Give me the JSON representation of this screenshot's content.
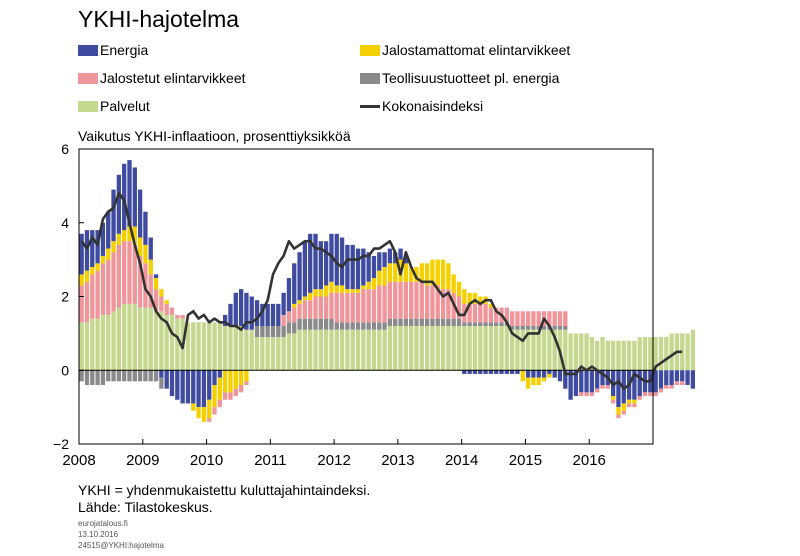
{
  "title": "YKHI-hajotelma",
  "subtitle": "Vaikutus YKHI-inflaatioon,  prosenttiyksikköä",
  "legend": [
    {
      "label": "Energia",
      "color": "#3f4ba1",
      "kind": "bar"
    },
    {
      "label": "Jalostamattomat elintarvikkeet",
      "color": "#f5d000",
      "kind": "bar"
    },
    {
      "label": "Jalostetut elintarvikkeet",
      "color": "#f0969b",
      "kind": "bar"
    },
    {
      "label": "Teollisuustuotteet pl. energia",
      "color": "#8a8a8a",
      "kind": "bar"
    },
    {
      "label": "Palvelut",
      "color": "#c5d88f",
      "kind": "bar"
    },
    {
      "label": "Kokonaisindeksi",
      "color": "#333333",
      "kind": "line"
    }
  ],
  "footnotes": [
    "YKHI = yhdenmukaistettu  kuluttajahintaindeksi.",
    "Lähde: Tilastokeskus."
  ],
  "credits": [
    "eurojatalous.fi",
    "13.10.2016",
    "24515@YKHI:hajotelma"
  ],
  "chart_data": {
    "type": "bar",
    "stacked": true,
    "x_start": "2008-01",
    "frequency": "monthly",
    "xlim": [
      2008,
      2017
    ],
    "x_ticks": [
      "2008",
      "2009",
      "2010",
      "2011",
      "2012",
      "2013",
      "2014",
      "2015",
      "2016"
    ],
    "ylim": [
      -2,
      6
    ],
    "y_ticks": [
      -2,
      0,
      2,
      4,
      6
    ],
    "grid": false,
    "series": [
      {
        "name": "Palvelut",
        "color": "#c5d88f",
        "values": [
          1.3,
          1.3,
          1.4,
          1.4,
          1.5,
          1.5,
          1.6,
          1.7,
          1.8,
          1.8,
          1.8,
          1.7,
          1.7,
          1.7,
          1.6,
          1.6,
          1.5,
          1.5,
          1.4,
          1.4,
          1.3,
          1.3,
          1.3,
          1.3,
          1.3,
          1.3,
          1.3,
          1.2,
          1.2,
          1.2,
          1.2,
          1.1,
          1.1,
          0.9,
          0.9,
          0.9,
          0.9,
          0.9,
          0.9,
          1.0,
          1.0,
          1.1,
          1.1,
          1.1,
          1.1,
          1.1,
          1.1,
          1.1,
          1.1,
          1.1,
          1.1,
          1.1,
          1.1,
          1.1,
          1.1,
          1.1,
          1.1,
          1.1,
          1.2,
          1.2,
          1.2,
          1.2,
          1.2,
          1.2,
          1.2,
          1.2,
          1.2,
          1.2,
          1.2,
          1.2,
          1.2,
          1.2,
          1.2,
          1.2,
          1.2,
          1.2,
          1.2,
          1.2,
          1.2,
          1.2,
          1.2,
          1.1,
          1.1,
          1.1,
          1.1,
          1.1,
          1.1,
          1.1,
          1.1,
          1.1,
          1.1,
          1.1,
          1.0,
          1.0,
          1.0,
          1.0,
          0.9,
          0.8,
          0.9,
          0.8,
          0.8,
          0.8,
          0.8,
          0.8,
          0.8,
          0.9,
          0.9,
          0.9,
          0.9,
          0.9,
          0.9,
          1.0,
          1.0,
          1.0,
          1.0,
          1.1
        ]
      },
      {
        "name": "Teollisuustuotteet pl. energia",
        "color": "#8a8a8a",
        "values": [
          0.0,
          0.0,
          0.0,
          0.0,
          0.0,
          0.0,
          0.0,
          0.0,
          0.0,
          0.0,
          0.0,
          0.0,
          0.0,
          0.0,
          0.0,
          0.0,
          0.0,
          0.0,
          0.0,
          0.0,
          0.0,
          0.0,
          0.0,
          0.0,
          0.0,
          0.0,
          0.0,
          0.0,
          0.0,
          0.0,
          0.0,
          0.0,
          0.0,
          0.3,
          0.3,
          0.3,
          0.3,
          0.3,
          0.3,
          0.3,
          0.3,
          0.3,
          0.3,
          0.3,
          0.3,
          0.3,
          0.3,
          0.3,
          0.2,
          0.2,
          0.2,
          0.2,
          0.2,
          0.2,
          0.2,
          0.2,
          0.2,
          0.2,
          0.2,
          0.2,
          0.2,
          0.2,
          0.2,
          0.2,
          0.2,
          0.2,
          0.2,
          0.2,
          0.2,
          0.2,
          0.2,
          0.2,
          0.1,
          0.1,
          0.1,
          0.1,
          0.1,
          0.1,
          0.1,
          0.1,
          0.1,
          0.1,
          0.1,
          0.1,
          0.1,
          0.1,
          0.1,
          0.1,
          0.1,
          0.1,
          0.1,
          0.1,
          0.0,
          0.0,
          0.0,
          0.0,
          0.0,
          0.0,
          0.0,
          0.0,
          0.0,
          0.0,
          0.0,
          0.0,
          0.0,
          0.0,
          0.0,
          0.0,
          0.0,
          0.0,
          0.0,
          0.0,
          0.0,
          0.0,
          0.0,
          0.0
        ]
      },
      {
        "name": "Jalostetut elintarvikkeet",
        "color": "#f0969b",
        "values": [
          1.0,
          1.1,
          1.2,
          1.3,
          1.4,
          1.5,
          1.6,
          1.7,
          1.7,
          1.7,
          1.6,
          1.4,
          1.2,
          0.9,
          0.6,
          0.4,
          0.3,
          0.2,
          0.1,
          0.1,
          0.0,
          0.0,
          0.0,
          0.0,
          0.0,
          0.0,
          0.0,
          0.0,
          0.0,
          0.0,
          0.0,
          0.0,
          0.0,
          0.0,
          0.0,
          0.0,
          0.0,
          0.0,
          0.3,
          0.3,
          0.4,
          0.4,
          0.5,
          0.5,
          0.6,
          0.6,
          0.6,
          0.7,
          0.8,
          0.8,
          0.8,
          0.8,
          0.8,
          0.9,
          0.9,
          0.9,
          1.0,
          1.0,
          1.0,
          1.0,
          1.0,
          1.0,
          1.0,
          1.0,
          1.0,
          0.9,
          0.9,
          0.9,
          0.8,
          0.8,
          0.7,
          0.6,
          0.5,
          0.5,
          0.5,
          0.5,
          0.5,
          0.4,
          0.4,
          0.4,
          0.4,
          0.4,
          0.4,
          0.4,
          0.4,
          0.4,
          0.4,
          0.4,
          0.4,
          0.4,
          0.4,
          0.4,
          0.0,
          0.0,
          0.0,
          0.0,
          0.0,
          0.0,
          0.0,
          0.0,
          0.0,
          0.0,
          0.0,
          0.0,
          0.0,
          0.0,
          0.0,
          0.0,
          0.0,
          0.0,
          0.0,
          0.0,
          0.0,
          0.0,
          0.0,
          0.0
        ]
      },
      {
        "name": "Jalostamattomat elintarvikkeet",
        "color": "#f5d000",
        "values": [
          0.3,
          0.3,
          0.2,
          0.2,
          0.2,
          0.3,
          0.3,
          0.3,
          0.3,
          0.4,
          0.5,
          0.5,
          0.5,
          0.4,
          0.3,
          0.2,
          0.1,
          0.0,
          0.0,
          0.0,
          0.0,
          0.0,
          0.0,
          0.0,
          0.0,
          0.0,
          0.0,
          0.0,
          0.0,
          0.0,
          0.0,
          0.0,
          0.0,
          0.0,
          0.0,
          0.0,
          0.0,
          0.0,
          0.0,
          0.0,
          0.1,
          0.1,
          0.1,
          0.2,
          0.2,
          0.2,
          0.3,
          0.3,
          0.2,
          0.2,
          0.1,
          0.1,
          0.1,
          0.1,
          0.2,
          0.3,
          0.4,
          0.5,
          0.5,
          0.5,
          0.6,
          0.5,
          0.4,
          0.4,
          0.5,
          0.6,
          0.7,
          0.7,
          0.8,
          0.7,
          0.5,
          0.4,
          0.4,
          0.3,
          0.3,
          0.2,
          0.2,
          0.1,
          0.0,
          0.0,
          0.0,
          0.0,
          0.0,
          0.0,
          0.0,
          0.0,
          0.0,
          0.0,
          0.0,
          0.0,
          0.0,
          0.0,
          0.0,
          0.0,
          0.0,
          0.0,
          0.0,
          0.0,
          0.0,
          0.0,
          0.0,
          0.0,
          0.0,
          0.0,
          0.0,
          0.0,
          0.0,
          0.0,
          0.0,
          0.0,
          0.0,
          0.0,
          0.0,
          0.0,
          0.0,
          0.0,
          0.0,
          0.2
        ]
      },
      {
        "name": "Energia",
        "color": "#3f4ba1",
        "values": [
          1.1,
          1.1,
          1.0,
          0.9,
          0.9,
          1.0,
          1.4,
          1.6,
          1.8,
          1.8,
          1.6,
          1.3,
          0.9,
          0.6,
          0.1,
          0.0,
          0.0,
          0.0,
          0.0,
          0.0,
          0.0,
          0.0,
          0.0,
          0.0,
          0.0,
          0.0,
          0.0,
          0.3,
          0.6,
          0.9,
          1.0,
          1.0,
          0.9,
          0.7,
          0.6,
          0.6,
          0.6,
          0.6,
          0.6,
          0.9,
          1.1,
          1.3,
          1.5,
          1.6,
          1.5,
          1.3,
          1.2,
          1.3,
          1.4,
          1.3,
          1.2,
          1.2,
          1.1,
          1.0,
          0.8,
          0.6,
          0.5,
          0.4,
          0.4,
          0.3,
          0.3,
          0.2,
          0.0,
          0.0,
          0.0,
          0.0,
          0.0,
          0.0,
          0.0,
          0.0,
          0.0,
          0.0,
          0.0,
          0.0,
          0.0,
          0.0,
          0.0,
          0.0,
          0.0,
          0.0,
          0.0,
          0.0,
          0.0,
          0.0,
          0.0,
          0.0,
          0.0,
          0.0,
          0.0,
          0.0,
          0.0,
          0.0,
          0.0,
          0.0,
          0.0,
          0.0,
          0.0,
          0.0,
          0.0,
          0.0,
          0.0,
          0.0,
          0.0,
          0.0,
          0.0,
          0.0,
          0.0,
          0.0,
          0.0,
          0.0,
          0.0,
          0.0,
          0.0,
          0.0,
          0.0,
          0.0
        ]
      },
      {
        "name": "Energia (negatiivinen)",
        "color": "#3f4ba1",
        "values": [
          0.0,
          0.0,
          0.0,
          0.0,
          0.0,
          0.0,
          0.0,
          0.0,
          0.0,
          0.0,
          0.0,
          0.0,
          0.0,
          0.0,
          0.0,
          -0.2,
          -0.5,
          -0.7,
          -0.8,
          -0.9,
          -0.9,
          -0.9,
          -1.0,
          -1.0,
          -0.8,
          -0.4,
          -0.2,
          0.0,
          0.0,
          0.0,
          0.0,
          0.0,
          0.0,
          0.0,
          0.0,
          0.0,
          0.0,
          0.0,
          0.0,
          0.0,
          0.0,
          0.0,
          0.0,
          0.0,
          0.0,
          0.0,
          0.0,
          0.0,
          0.0,
          0.0,
          0.0,
          0.0,
          0.0,
          0.0,
          0.0,
          0.0,
          0.0,
          0.0,
          0.0,
          0.0,
          0.0,
          0.0,
          0.0,
          0.0,
          0.0,
          0.0,
          0.0,
          0.0,
          0.0,
          0.0,
          0.0,
          0.0,
          -0.1,
          -0.1,
          -0.1,
          -0.1,
          -0.1,
          -0.1,
          -0.1,
          -0.1,
          -0.1,
          -0.1,
          -0.1,
          0.0,
          -0.2,
          -0.2,
          -0.2,
          -0.2,
          -0.1,
          -0.2,
          -0.3,
          -0.5,
          -0.8,
          -0.7,
          -0.6,
          -0.6,
          -0.6,
          -0.5,
          -0.4,
          -0.4,
          -0.7,
          -1.0,
          -0.9,
          -0.8,
          -0.8,
          -0.7,
          -0.6,
          -0.6,
          -0.6,
          -0.5,
          -0.4,
          -0.4,
          -0.3,
          -0.3,
          -0.4,
          -0.5
        ]
      },
      {
        "name": "Jalostamattomat elintarvikkeet (negatiivinen)",
        "color": "#f5d000",
        "values": [
          0.0,
          0.0,
          0.0,
          0.0,
          0.0,
          0.0,
          0.0,
          0.0,
          0.0,
          0.0,
          0.0,
          0.0,
          0.0,
          0.0,
          0.0,
          0.0,
          0.0,
          0.0,
          0.0,
          0.0,
          0.0,
          -0.2,
          -0.3,
          -0.4,
          -0.5,
          -0.6,
          -0.6,
          -0.6,
          -0.6,
          -0.5,
          -0.4,
          -0.3,
          0.0,
          0.0,
          0.0,
          0.0,
          0.0,
          0.0,
          0.0,
          0.0,
          0.0,
          0.0,
          0.0,
          0.0,
          0.0,
          0.0,
          0.0,
          0.0,
          0.0,
          0.0,
          0.0,
          0.0,
          0.0,
          0.0,
          0.0,
          0.0,
          0.0,
          0.0,
          0.0,
          0.0,
          0.0,
          0.0,
          0.0,
          0.0,
          0.0,
          0.0,
          0.0,
          0.0,
          0.0,
          0.0,
          0.0,
          0.0,
          0.0,
          0.0,
          0.0,
          0.0,
          0.0,
          0.0,
          0.0,
          0.0,
          0.0,
          0.0,
          0.0,
          -0.3,
          -0.3,
          -0.2,
          -0.2,
          -0.1,
          -0.1,
          0.0,
          0.0,
          0.0,
          0.0,
          0.0,
          0.0,
          0.0,
          0.0,
          0.0,
          0.0,
          0.0,
          -0.1,
          -0.2,
          -0.2,
          -0.1,
          -0.1,
          0.0,
          0.0,
          0.0,
          0.0,
          0.0,
          0.0,
          0.0,
          0.0,
          0.0,
          0.0,
          0.0
        ]
      },
      {
        "name": "Jalostetut elintarvikkeet (negatiivinen)",
        "color": "#f0969b",
        "values": [
          0.0,
          0.0,
          0.0,
          0.0,
          0.0,
          0.0,
          0.0,
          0.0,
          0.0,
          0.0,
          0.0,
          0.0,
          0.0,
          0.0,
          0.0,
          0.0,
          0.0,
          0.0,
          0.0,
          0.0,
          0.0,
          0.0,
          0.0,
          0.0,
          -0.1,
          -0.2,
          -0.2,
          -0.2,
          -0.2,
          -0.2,
          -0.2,
          -0.1,
          0.0,
          0.0,
          0.0,
          0.0,
          0.0,
          0.0,
          0.0,
          0.0,
          0.0,
          0.0,
          0.0,
          0.0,
          0.0,
          0.0,
          0.0,
          0.0,
          0.0,
          0.0,
          0.0,
          0.0,
          0.0,
          0.0,
          0.0,
          0.0,
          0.0,
          0.0,
          0.0,
          0.0,
          0.0,
          0.0,
          0.0,
          0.0,
          0.0,
          0.0,
          0.0,
          0.0,
          0.0,
          0.0,
          0.0,
          0.0,
          0.0,
          0.0,
          0.0,
          0.0,
          0.0,
          0.0,
          0.0,
          0.0,
          0.0,
          0.0,
          0.0,
          0.0,
          0.0,
          0.0,
          0.0,
          0.0,
          0.0,
          0.0,
          0.0,
          0.0,
          0.0,
          0.0,
          -0.1,
          -0.1,
          -0.1,
          -0.1,
          -0.1,
          -0.1,
          -0.1,
          -0.1,
          -0.1,
          -0.1,
          -0.1,
          -0.1,
          -0.1,
          -0.1,
          -0.1,
          -0.1,
          -0.1,
          -0.1,
          -0.1,
          -0.1
        ]
      },
      {
        "name": "Teollisuustuotteet pl. energia (negatiivinen)",
        "color": "#8a8a8a",
        "values": [
          -0.3,
          -0.4,
          -0.4,
          -0.4,
          -0.4,
          -0.3,
          -0.3,
          -0.3,
          -0.3,
          -0.3,
          -0.3,
          -0.3,
          -0.3,
          -0.3,
          -0.3,
          -0.3,
          0.0,
          0.0,
          0.0,
          0.0,
          0.0,
          0.0,
          0.0,
          0.0,
          0.0,
          0.0,
          0.0,
          0.0,
          0.0,
          0.0,
          0.0,
          0.0,
          0.0,
          0.0,
          0.0,
          0.0,
          0.0,
          0.0,
          0.0,
          0.0,
          0.0,
          0.0,
          0.0,
          0.0,
          0.0,
          0.0,
          0.0,
          0.0,
          0.0,
          0.0,
          0.0,
          0.0,
          0.0,
          0.0,
          0.0,
          0.0,
          0.0,
          0.0,
          0.0,
          0.0,
          0.0,
          0.0,
          0.0,
          0.0,
          0.0,
          0.0,
          0.0,
          0.0,
          0.0,
          0.0,
          0.0,
          0.0,
          0.0,
          0.0,
          0.0,
          0.0,
          0.0,
          0.0,
          0.0,
          0.0,
          0.0,
          0.0,
          0.0,
          0.0,
          0.0,
          0.0,
          0.0,
          0.0,
          0.0,
          0.0,
          0.0,
          0.0,
          0.0,
          0.0,
          0.0,
          0.0,
          0.0,
          0.0,
          0.0,
          0.0,
          0.0,
          0.0,
          0.0,
          0.0,
          0.0,
          0.0,
          0.0,
          0.0,
          0.0,
          0.0,
          0.0,
          0.0,
          0.0,
          0.0,
          0.0,
          0.0
        ]
      }
    ],
    "line": {
      "name": "Kokonaisindeksi",
      "color": "#333333",
      "values": [
        3.5,
        3.3,
        3.6,
        3.4,
        4.1,
        4.3,
        4.4,
        4.8,
        4.6,
        4.0,
        3.4,
        2.9,
        2.2,
        2.0,
        1.6,
        1.4,
        1.3,
        1.0,
        0.9,
        0.6,
        1.5,
        1.6,
        1.4,
        1.5,
        1.3,
        1.4,
        1.3,
        1.3,
        1.2,
        1.2,
        1.1,
        1.3,
        1.3,
        1.4,
        1.6,
        1.9,
        2.6,
        2.9,
        3.1,
        3.5,
        3.3,
        3.4,
        3.5,
        3.5,
        3.3,
        3.3,
        3.2,
        3.1,
        2.9,
        2.8,
        3.0,
        3.0,
        3.0,
        3.1,
        3.1,
        3.3,
        3.3,
        3.4,
        3.5,
        3.2,
        2.6,
        3.2,
        2.8,
        2.5,
        2.4,
        2.4,
        2.4,
        2.2,
        2.0,
        2.1,
        1.8,
        1.5,
        1.5,
        1.8,
        1.9,
        1.8,
        1.9,
        1.9,
        1.6,
        1.5,
        1.3,
        1.0,
        0.9,
        0.8,
        1.0,
        1.0,
        1.0,
        1.4,
        1.2,
        0.9,
        0.5,
        -0.1,
        -0.1,
        -0.1,
        0.1,
        0.0,
        0.1,
        0.0,
        -0.1,
        -0.2,
        -0.4,
        -0.3,
        -0.5,
        -0.4,
        -0.1,
        -0.2,
        -0.3,
        -0.3,
        0.1,
        0.2,
        0.3,
        0.4,
        0.5,
        0.5
      ]
    }
  }
}
